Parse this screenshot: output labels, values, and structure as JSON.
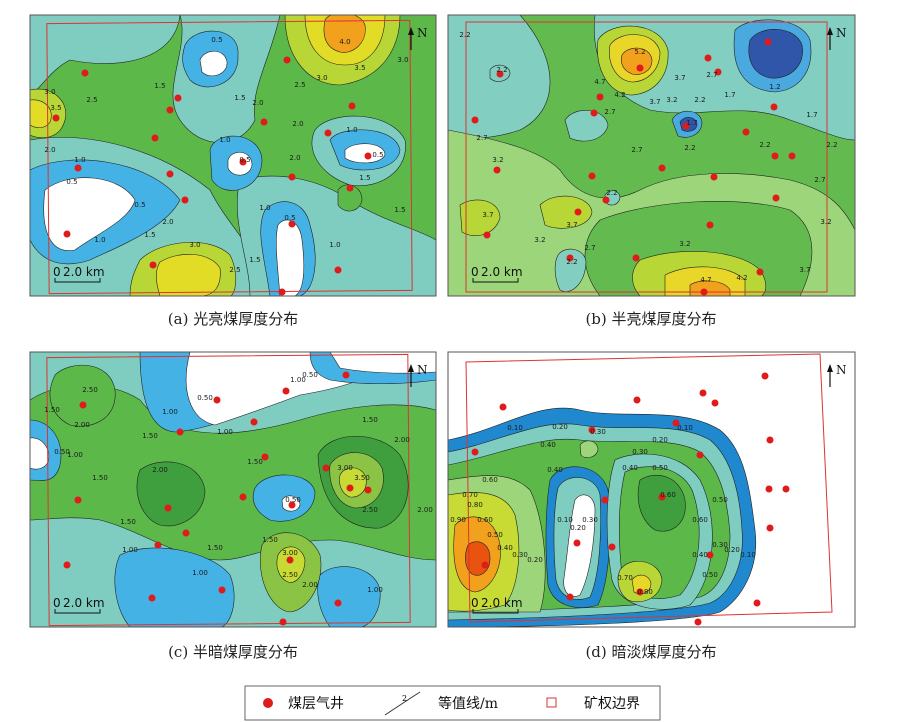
{
  "panels": [
    {
      "caption": "(a) 光亮煤厚度分布",
      "north": "N",
      "scale_zero": "0",
      "scale_label": "2.0 km",
      "contour_labels": [
        "0.5",
        "4.0",
        "3.5",
        "3.0",
        "2.5",
        "2.0",
        "1.5",
        "2.0",
        "3.5",
        "3.0",
        "2.5",
        "2.0",
        "1.5",
        "1.0",
        "0.5",
        "0.5",
        "1.0",
        "0.5",
        "1.0",
        "0.5",
        "1.5",
        "2.0",
        "1.0",
        "1.5",
        "2.0",
        "2.5",
        "3.0",
        "1.0",
        "0.5",
        "1.5",
        "1.0",
        "1.5",
        "3.0"
      ]
    },
    {
      "caption": "(b) 半亮煤厚度分布",
      "north": "N",
      "scale_zero": "0",
      "scale_label": "2.0 km",
      "contour_labels": [
        "2.2",
        "2.2",
        "2.7",
        "3.2",
        "3.7",
        "3.2",
        "3.7",
        "2.7",
        "2.2",
        "5.2",
        "4.7",
        "4.2",
        "3.7",
        "3.2",
        "3.7",
        "2.7",
        "2.2",
        "1.7",
        "1.2",
        "1.7",
        "2.2",
        "2.7",
        "3.2",
        "3.7",
        "4.2",
        "4.7",
        "1.7",
        "2.2",
        "2.7",
        "2.2",
        "3.2",
        "2.2",
        "2.7"
      ]
    },
    {
      "caption": "(c) 半暗煤厚度分布",
      "north": "N",
      "scale_zero": "0",
      "scale_label": "2.0 km",
      "contour_labels": [
        "2.50",
        "2.00",
        "1.50",
        "1.00",
        "0.50",
        "1.50",
        "1.00",
        "0.50",
        "1.50",
        "1.00",
        "1.50",
        "2.00",
        "1.50",
        "1.00",
        "0.50",
        "3.00",
        "2.50",
        "2.00",
        "1.50",
        "3.50",
        "3.00",
        "2.50",
        "2.00",
        "1.50",
        "2.00",
        "1.00",
        "1.50",
        "1.00",
        "1.00",
        "0.50"
      ]
    },
    {
      "caption": "(d) 暗淡煤厚度分布",
      "north": "N",
      "scale_zero": "0",
      "scale_label": "2.0 km",
      "contour_labels": [
        "0.10",
        "0.20",
        "0.30",
        "0.40",
        "0.10",
        "0.20",
        "0.30",
        "0.40",
        "0.50",
        "0.60",
        "0.70",
        "0.80",
        "0.90",
        "0.60",
        "0.50",
        "0.40",
        "0.30",
        "0.20",
        "0.10",
        "0.20",
        "0.30",
        "0.40",
        "0.50",
        "0.60",
        "0.10",
        "0.20",
        "0.30",
        "0.40",
        "0.50",
        "0.70",
        "0.80",
        "0.60"
      ]
    }
  ],
  "legend": {
    "well": "煤层气井",
    "contour_sample": "2",
    "contour": "等值线/m",
    "boundary": "矿权边界"
  }
}
